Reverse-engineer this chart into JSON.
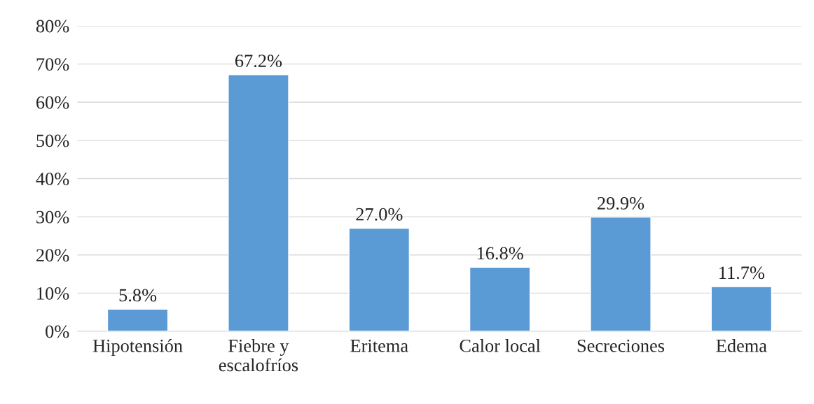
{
  "chart_data": {
    "type": "bar",
    "categories": [
      "Hipotensión",
      "Fiebre y\nescalofríos",
      "Eritema",
      "Calor local",
      "Secreciones",
      "Edema"
    ],
    "values": [
      5.8,
      67.2,
      27.0,
      16.8,
      29.9,
      11.7
    ],
    "value_labels": [
      "5.8%",
      "67.2%",
      "27.0%",
      "16.8%",
      "29.9%",
      "11.7%"
    ],
    "color": "#5b9bd5",
    "ylim": [
      0,
      80
    ],
    "yticks": [
      {
        "value": 0,
        "label": "0%"
      },
      {
        "value": 10,
        "label": "10%"
      },
      {
        "value": 20,
        "label": "20%"
      },
      {
        "value": 30,
        "label": "30%"
      },
      {
        "value": 40,
        "label": "40%"
      },
      {
        "value": 50,
        "label": "50%"
      },
      {
        "value": 60,
        "label": "60%"
      },
      {
        "value": 70,
        "label": "70%"
      },
      {
        "value": 80,
        "label": "80%"
      }
    ],
    "grid": "y"
  }
}
